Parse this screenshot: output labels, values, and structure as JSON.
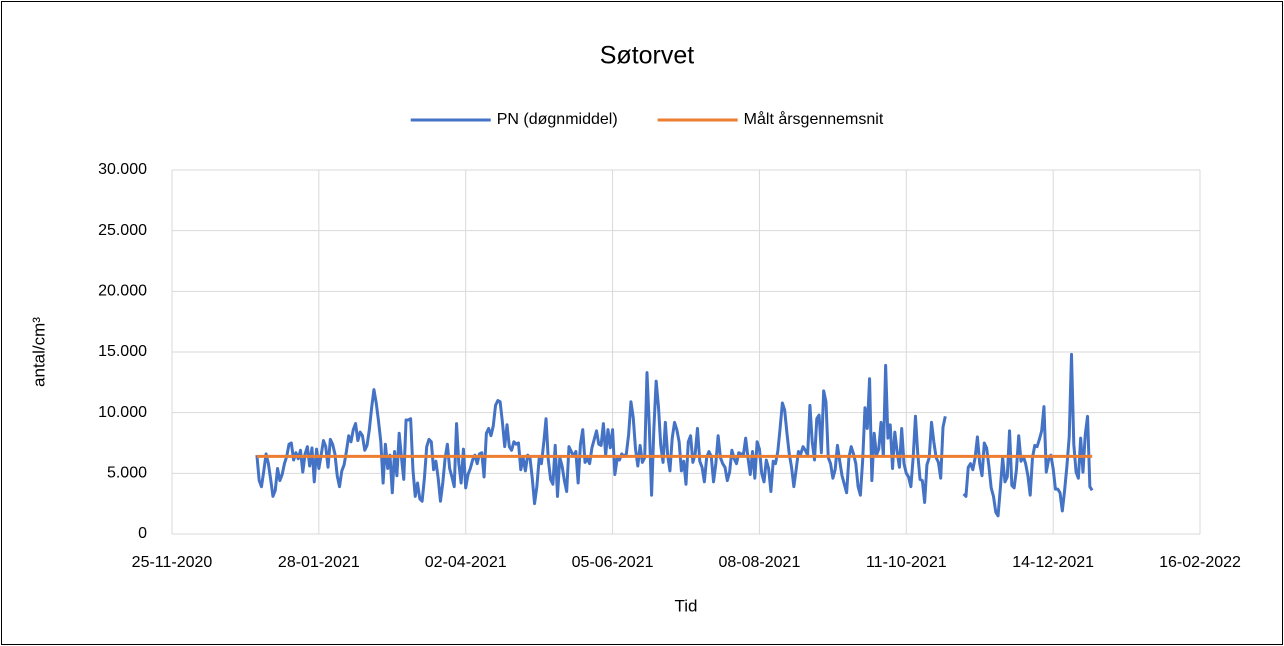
{
  "chart_data": {
    "type": "line",
    "title": "Søtorvet",
    "xlabel": "Tid",
    "ylabel": "antal/cm³",
    "grid": true,
    "legend": "top",
    "xlim": [
      "2020-11-25",
      "2022-02-16"
    ],
    "xticks": [
      {
        "value": "2020-11-25",
        "label": "25-11-2020"
      },
      {
        "value": "2021-01-28",
        "label": "28-01-2021"
      },
      {
        "value": "2021-04-02",
        "label": "02-04-2021"
      },
      {
        "value": "2021-06-05",
        "label": "05-06-2021"
      },
      {
        "value": "2021-08-08",
        "label": "08-08-2021"
      },
      {
        "value": "2021-10-11",
        "label": "11-10-2021"
      },
      {
        "value": "2021-12-14",
        "label": "14-12-2021"
      },
      {
        "value": "2022-02-16",
        "label": "16-02-2022"
      }
    ],
    "ylim": [
      0,
      30000
    ],
    "yticks": [
      0,
      {
        "value": 5000,
        "label": "5.000"
      },
      {
        "value": 10000,
        "label": "10.000"
      },
      {
        "value": 15000,
        "label": "15.000"
      },
      {
        "value": 20000,
        "label": "20.000"
      },
      {
        "value": 25000,
        "label": "25.000"
      },
      {
        "value": 30000,
        "label": "30.000"
      }
    ],
    "series": [
      {
        "name": "PN (døgnmiddel)",
        "color": "#4472c4",
        "x": [
          "2021-01-01",
          "2021-01-02",
          "2021-01-03",
          "2021-01-04",
          "2021-01-05",
          "2021-01-06",
          "2021-01-07",
          "2021-01-08",
          "2021-01-09",
          "2021-01-10",
          "2021-01-11",
          "2021-01-12",
          "2021-01-13",
          "2021-01-14",
          "2021-01-15",
          "2021-01-16",
          "2021-01-17",
          "2021-01-18",
          "2021-01-19",
          "2021-01-20",
          "2021-01-21",
          "2021-01-22",
          "2021-01-23",
          "2021-01-24",
          "2021-01-25",
          "2021-01-26",
          "2021-01-27",
          "2021-01-28",
          "2021-01-29",
          "2021-01-30",
          "2021-01-31",
          "2021-02-01",
          "2021-02-02",
          "2021-02-03",
          "2021-02-04",
          "2021-02-05",
          "2021-02-06",
          "2021-02-07",
          "2021-02-08",
          "2021-02-09",
          "2021-02-10",
          "2021-02-11",
          "2021-02-12",
          "2021-02-13",
          "2021-02-14",
          "2021-02-15",
          "2021-02-16",
          "2021-02-17",
          "2021-02-18",
          "2021-02-19",
          "2021-02-20",
          "2021-02-21",
          "2021-02-22",
          "2021-02-23",
          "2021-02-24",
          "2021-02-25",
          "2021-02-26",
          "2021-02-27",
          "2021-02-28",
          "2021-03-01",
          "2021-03-02",
          "2021-03-03",
          "2021-03-04",
          "2021-03-05",
          "2021-03-06",
          "2021-03-07",
          "2021-03-08",
          "2021-03-09",
          "2021-03-10",
          "2021-03-11",
          "2021-03-12",
          "2021-03-13",
          "2021-03-14",
          "2021-03-15",
          "2021-03-16",
          "2021-03-17",
          "2021-03-18",
          "2021-03-19",
          "2021-03-20",
          "2021-03-21",
          "2021-03-22",
          "2021-03-23",
          "2021-03-24",
          "2021-03-25",
          "2021-03-26",
          "2021-03-27",
          "2021-03-28",
          "2021-03-29",
          "2021-03-30",
          "2021-03-31",
          "2021-04-01",
          "2021-04-02",
          "2021-04-03",
          "2021-04-04",
          "2021-04-05",
          "2021-04-06",
          "2021-04-07",
          "2021-04-08",
          "2021-04-09",
          "2021-04-10",
          "2021-04-11",
          "2021-04-12",
          "2021-04-13",
          "2021-04-14",
          "2021-04-15",
          "2021-04-16",
          "2021-04-17",
          "2021-04-18",
          "2021-04-19",
          "2021-04-20",
          "2021-04-21",
          "2021-04-22",
          "2021-04-23",
          "2021-04-24",
          "2021-04-25",
          "2021-04-26",
          "2021-04-27",
          "2021-04-28",
          "2021-04-29",
          "2021-04-30",
          "2021-05-01",
          "2021-05-02",
          "2021-05-03",
          "2021-05-04",
          "2021-05-05",
          "2021-05-06",
          "2021-05-07",
          "2021-05-08",
          "2021-05-09",
          "2021-05-10",
          "2021-05-11",
          "2021-05-12",
          "2021-05-13",
          "2021-05-14",
          "2021-05-15",
          "2021-05-16",
          "2021-05-17",
          "2021-05-18",
          "2021-05-19",
          "2021-05-20",
          "2021-05-21",
          "2021-05-22",
          "2021-05-23",
          "2021-05-24",
          "2021-05-25",
          "2021-05-26",
          "2021-05-27",
          "2021-05-28",
          "2021-05-29",
          "2021-05-30",
          "2021-05-31",
          "2021-06-01",
          "2021-06-02",
          "2021-06-03",
          "2021-06-04",
          "2021-06-05",
          "2021-06-06",
          "2021-06-07",
          "2021-06-08",
          "2021-06-09",
          "2021-06-10",
          "2021-06-11",
          "2021-06-12",
          "2021-06-13",
          "2021-06-14",
          "2021-06-15",
          "2021-06-16",
          "2021-06-17",
          "2021-06-18",
          "2021-06-19",
          "2021-06-20",
          "2021-06-21",
          "2021-06-22",
          "2021-06-23",
          "2021-06-24",
          "2021-06-25",
          "2021-06-26",
          "2021-06-27",
          "2021-06-28",
          "2021-06-29",
          "2021-06-30",
          "2021-07-01",
          "2021-07-02",
          "2021-07-03",
          "2021-07-04",
          "2021-07-05",
          "2021-07-06",
          "2021-07-07",
          "2021-07-08",
          "2021-07-09",
          "2021-07-10",
          "2021-07-11",
          "2021-07-12",
          "2021-07-13",
          "2021-07-14",
          "2021-07-15",
          "2021-07-16",
          "2021-07-17",
          "2021-07-18",
          "2021-07-19",
          "2021-07-20",
          "2021-07-21",
          "2021-07-22",
          "2021-07-23",
          "2021-07-24",
          "2021-07-25",
          "2021-07-26",
          "2021-07-27",
          "2021-07-28",
          "2021-07-29",
          "2021-07-30",
          "2021-07-31",
          "2021-08-01",
          "2021-08-02",
          "2021-08-03",
          "2021-08-04",
          "2021-08-05",
          "2021-08-06",
          "2021-08-07",
          "2021-08-08",
          "2021-08-09",
          "2021-08-10",
          "2021-08-11",
          "2021-08-12",
          "2021-08-13",
          "2021-08-14",
          "2021-08-15",
          "2021-08-16",
          "2021-08-17",
          "2021-08-18",
          "2021-08-19",
          "2021-08-20",
          "2021-08-21",
          "2021-08-22",
          "2021-08-23",
          "2021-08-24",
          "2021-08-25",
          "2021-08-26",
          "2021-08-27",
          "2021-08-28",
          "2021-08-29",
          "2021-08-30",
          "2021-08-31",
          "2021-09-01",
          "2021-09-02",
          "2021-09-03",
          "2021-09-04",
          "2021-09-05",
          "2021-09-06",
          "2021-09-07",
          "2021-09-08",
          "2021-09-09",
          "2021-09-10",
          "2021-09-11",
          "2021-09-12",
          "2021-09-13",
          "2021-09-14",
          "2021-09-15",
          "2021-09-16",
          "2021-09-17",
          "2021-09-18",
          "2021-09-19",
          "2021-09-20",
          "2021-09-21",
          "2021-09-22",
          "2021-09-23",
          "2021-09-24",
          "2021-09-25",
          "2021-09-26",
          "2021-09-27",
          "2021-09-28",
          "2021-09-29",
          "2021-09-30",
          "2021-10-01",
          "2021-10-02",
          "2021-10-03",
          "2021-10-04",
          "2021-10-05",
          "2021-10-06",
          "2021-10-07",
          "2021-10-08",
          "2021-10-09",
          "2021-10-10",
          "2021-10-11",
          "2021-10-12",
          "2021-10-13",
          "2021-10-14",
          "2021-10-15",
          "2021-10-16",
          "2021-10-17",
          "2021-10-18",
          "2021-10-19",
          "2021-10-20",
          "2021-10-21",
          "2021-10-22",
          "2021-10-23",
          "2021-10-24",
          "2021-10-25",
          "2021-10-26",
          "2021-10-27",
          "2021-10-28",
          "2021-10-29",
          "2021-10-30",
          "2021-10-31",
          "2021-11-01",
          "2021-11-02",
          "2021-11-03",
          "2021-11-04",
          "2021-11-05",
          "2021-11-06",
          "2021-11-07",
          "2021-11-08",
          "2021-11-09",
          "2021-11-10",
          "2021-11-11",
          "2021-11-12",
          "2021-11-13",
          "2021-11-14",
          "2021-11-15",
          "2021-11-16",
          "2021-11-17",
          "2021-11-18",
          "2021-11-19",
          "2021-11-20",
          "2021-11-21",
          "2021-11-22",
          "2021-11-23",
          "2021-11-24",
          "2021-11-25",
          "2021-11-26",
          "2021-11-27",
          "2021-11-28",
          "2021-11-29",
          "2021-11-30",
          "2021-12-01",
          "2021-12-02",
          "2021-12-03",
          "2021-12-04",
          "2021-12-05",
          "2021-12-06",
          "2021-12-07",
          "2021-12-08",
          "2021-12-09",
          "2021-12-10",
          "2021-12-11",
          "2021-12-12",
          "2021-12-13",
          "2021-12-14",
          "2021-12-15",
          "2021-12-16",
          "2021-12-17",
          "2021-12-18",
          "2021-12-19",
          "2021-12-20",
          "2021-12-21",
          "2021-12-22",
          "2021-12-23",
          "2021-12-24",
          "2021-12-25",
          "2021-12-26",
          "2021-12-27",
          "2021-12-28",
          "2021-12-29",
          "2021-12-30",
          "2021-12-31"
        ],
        "values": [
          6500,
          4400,
          3900,
          5200,
          6600,
          5800,
          4500,
          3100,
          3600,
          5400,
          4400,
          4900,
          5800,
          6400,
          7400,
          7500,
          6100,
          6700,
          6200,
          6900,
          5100,
          6600,
          7200,
          5600,
          7100,
          4300,
          7000,
          5400,
          6500,
          7700,
          7200,
          5500,
          7800,
          7400,
          6600,
          4800,
          3900,
          5200,
          5700,
          6800,
          8100,
          7600,
          8600,
          9100,
          7700,
          8400,
          8100,
          6900,
          7300,
          8600,
          10400,
          11900,
          10800,
          9300,
          7600,
          4200,
          7400,
          5400,
          6500,
          3400,
          6800,
          4800,
          8300,
          6300,
          4500,
          9400,
          9400,
          9500,
          5300,
          3100,
          4200,
          2900,
          2700,
          4600,
          7200,
          7800,
          7600,
          5300,
          6000,
          4600,
          2700,
          4200,
          6200,
          7400,
          5400,
          4700,
          3900,
          9100,
          5800,
          4200,
          7000,
          3800,
          4900,
          5400,
          6100,
          6500,
          5800,
          6600,
          6700,
          4700,
          8300,
          8700,
          8100,
          8900,
          10600,
          11000,
          10900,
          9200,
          7200,
          9000,
          7200,
          6900,
          7600,
          7400,
          7500,
          5300,
          6300,
          5200,
          6500,
          6300,
          4600,
          2500,
          3900,
          6200,
          5800,
          7500,
          9500,
          6100,
          4500,
          4100,
          7300,
          3100,
          6300,
          5600,
          4400,
          3500,
          7200,
          6800,
          6400,
          6800,
          4200,
          7400,
          8600,
          5900,
          6200,
          5800,
          7100,
          7800,
          8500,
          7400,
          7300,
          9100,
          6500,
          8600,
          7100,
          8600,
          4900,
          6200,
          6100,
          6600,
          6400,
          6600,
          8200,
          10900,
          9600,
          7000,
          5600,
          7300,
          5900,
          6300,
          13300,
          8900,
          3200,
          8700,
          12600,
          10500,
          7300,
          5900,
          9200,
          6500,
          5200,
          7900,
          9200,
          8600,
          7600,
          5200,
          6000,
          4100,
          7600,
          8100,
          5900,
          6600,
          8700,
          6000,
          5500,
          4300,
          6300,
          6800,
          6400,
          4300,
          5800,
          8100,
          6300,
          5800,
          5500,
          4400,
          5100,
          6900,
          6200,
          5800,
          6700,
          6600,
          6500,
          7900,
          6300,
          4900,
          6800,
          4600,
          7600,
          7000,
          5000,
          4300,
          6100,
          5400,
          3500,
          6000,
          5800,
          6800,
          8700,
          10800,
          10200,
          8300,
          6600,
          5500,
          3900,
          5300,
          6800,
          6600,
          7200,
          6900,
          6500,
          10600,
          7600,
          6100,
          9500,
          9800,
          6700,
          11800,
          10900,
          6300,
          5800,
          4600,
          5300,
          7300,
          6000,
          4800,
          4100,
          3400,
          6300,
          7200,
          6600,
          5800,
          3900,
          3200,
          6100,
          10400,
          8700,
          12800,
          4400,
          8300,
          6500,
          7000,
          9200,
          6400,
          13900,
          7900,
          9000,
          5400,
          8400,
          6800,
          5500,
          8700,
          5800,
          5000,
          4700,
          3900,
          6300,
          9700,
          6600,
          4500,
          4400,
          2600,
          5700,
          6300,
          9200,
          7600,
          6300,
          5900,
          4600,
          8800,
          9700,
          null,
          null,
          null,
          null,
          null,
          null,
          null,
          3300,
          3100,
          5500,
          5800,
          5300,
          6300,
          8000,
          5800,
          4800,
          7500,
          7100,
          5600,
          3800,
          3100,
          1800,
          1500,
          3800,
          6300,
          4300,
          4700,
          8500,
          4000,
          3800,
          5300,
          8100,
          6000,
          6400,
          5800,
          4800,
          3200,
          6300,
          7300,
          7200,
          7800,
          8500,
          10500,
          5100,
          6100,
          6500,
          5400,
          3700,
          3700,
          3400,
          1900,
          3600,
          5600,
          8000,
          14800,
          7400,
          5100,
          4600,
          7900,
          5100,
          8200,
          9700,
          3900,
          3600
        ]
      },
      {
        "name": "Målt årsgennemsnit",
        "color": "#ed7d31",
        "x": [
          "2021-01-01",
          "2021-12-31"
        ],
        "values": [
          6400,
          6400
        ]
      }
    ]
  }
}
